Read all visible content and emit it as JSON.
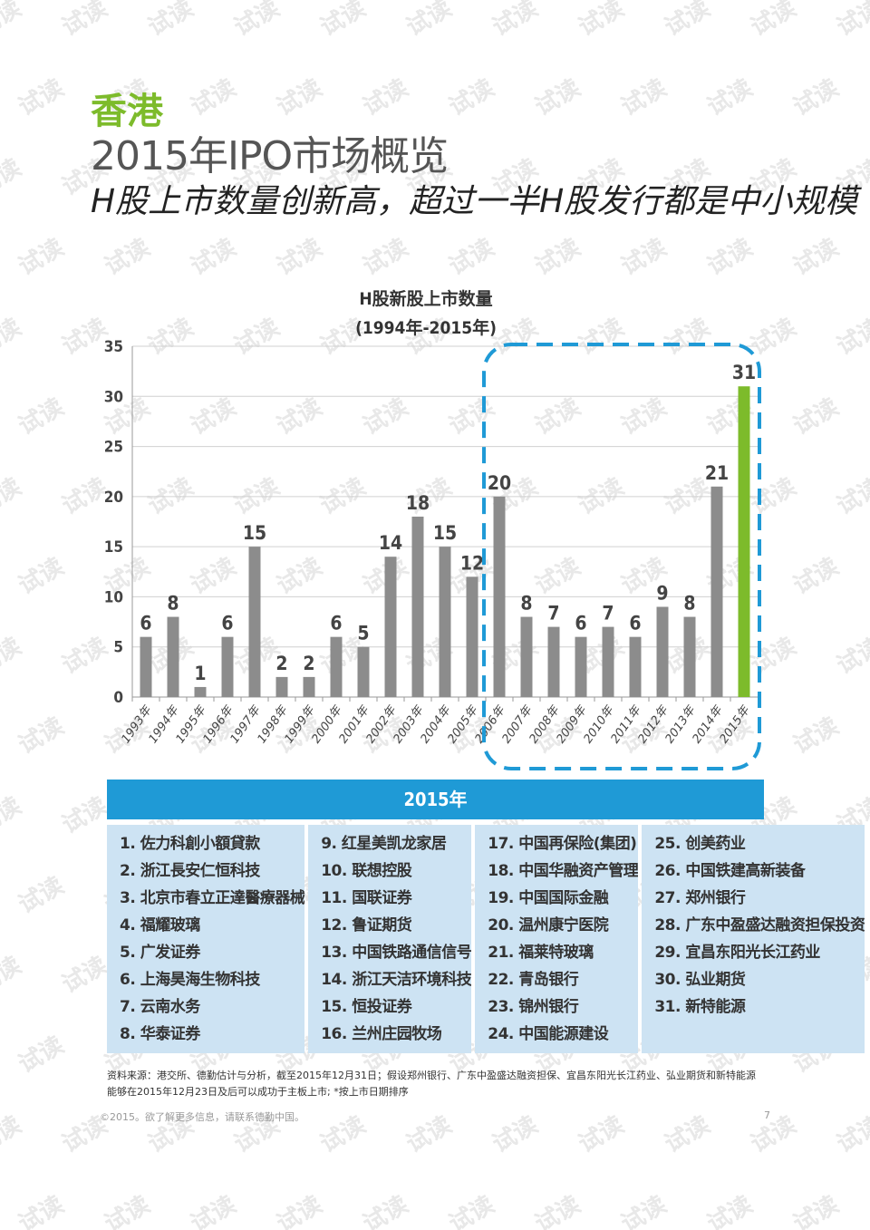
{
  "header": {
    "region": "香港",
    "title": "2015年IPO市场概览",
    "subtitle": "H股上市数量创新高，超过一半H股发行都是中小规模"
  },
  "watermark_text": "试读",
  "chart_data": {
    "type": "bar",
    "title": "H股新股上市数量",
    "subtitle": "(1994年-2015年)",
    "categories": [
      "1993年",
      "1994年",
      "1995年",
      "1996年",
      "1997年",
      "1998年",
      "1999年",
      "2000年",
      "2001年",
      "2002年",
      "2003年",
      "2004年",
      "2005年",
      "2006年",
      "2007年",
      "2008年",
      "2009年",
      "2010年",
      "2011年",
      "2012年",
      "2013年",
      "2014年",
      "2015年"
    ],
    "values": [
      6,
      8,
      1,
      6,
      15,
      2,
      2,
      6,
      5,
      14,
      18,
      15,
      12,
      20,
      8,
      7,
      6,
      7,
      6,
      9,
      8,
      21,
      31
    ],
    "yticks": [
      0,
      5,
      10,
      15,
      20,
      25,
      30,
      35
    ],
    "ylim": [
      0,
      35
    ],
    "grid": true,
    "colors": {
      "bar": "#8c8c8c",
      "highlight": "#7dbb2b",
      "dashed_box": "#1f9ad6"
    },
    "highlight_category": "2015年",
    "dashed_box_range": [
      "2006年",
      "2015年"
    ]
  },
  "banner": {
    "label": "2015年"
  },
  "companies": [
    [
      "1. 佐力科創小額貸款",
      "2. 浙江長安仁恒科技",
      "3. 北京市春立正達醫療器械",
      "4. 福耀玻璃",
      "5. 广发证券",
      "6. 上海昊海生物科技",
      "7. 云南水务",
      "8. 华泰证券"
    ],
    [
      "9.  红星美凯龙家居",
      "10. 联想控股",
      "11. 国联证券",
      "12. 鲁证期货",
      "13. 中国铁路通信信号",
      "14. 浙江天洁环境科技",
      "15. 恒投证券",
      "16. 兰州庄园牧场"
    ],
    [
      "17. 中国再保险(集团)",
      "18. 中国华融资产管理",
      "19. 中国国际金融",
      "20. 温州康宁医院",
      "21. 福莱特玻璃",
      "22. 青岛银行",
      "23. 锦州银行",
      "24. 中国能源建设"
    ],
    [
      "25. 创美药业",
      "26. 中国铁建高新装备",
      "27. 郑州银行",
      "28. 广东中盈盛达融资担保投资",
      "29. 宜昌东阳光长江药业",
      "30. 弘业期货",
      "31. 新特能源"
    ]
  ],
  "source_note": "资料来源：港交所、德勤估计与分析，截至2015年12月31日；假设郑州银行、广东中盈盛达融资担保、宜昌东阳光长江药业、弘业期货和新特能源能够在2015年12月23日及后可以成功于主板上市; *按上市日期排序",
  "footer": {
    "copyright": "©2015。欲了解更多信息，请联系德勤中国。",
    "page": "7"
  }
}
